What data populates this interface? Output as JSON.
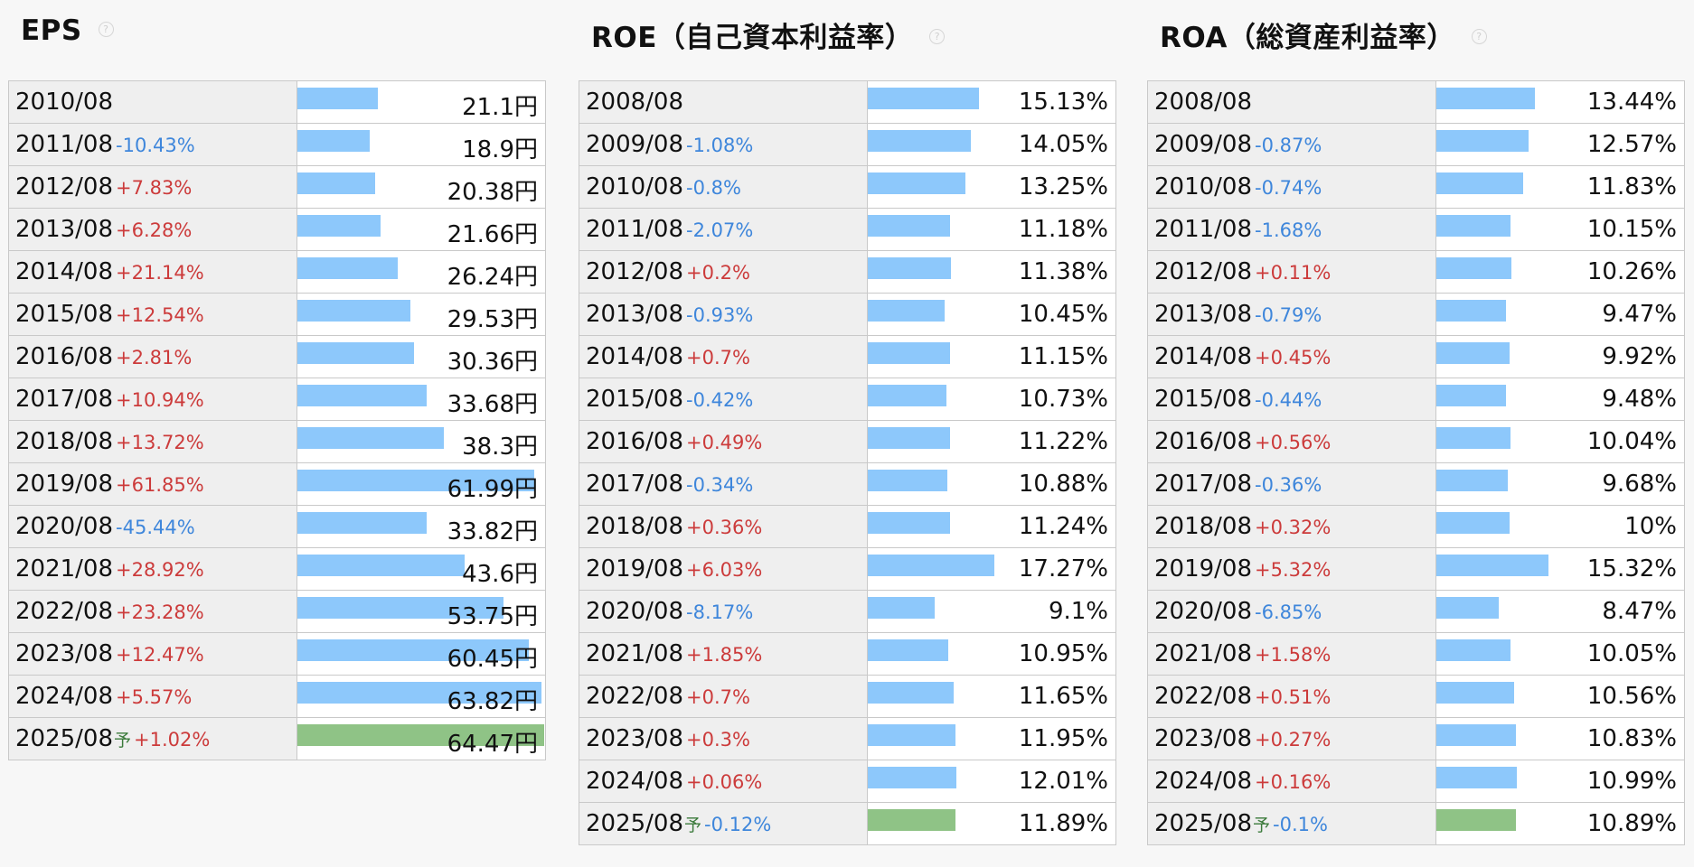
{
  "sections": [
    {
      "title": "EPS",
      "unit": "円",
      "rows": [
        {
          "year": "2010/08",
          "change": "",
          "value": 21.1,
          "value_text": "21.1円",
          "forecast": false
        },
        {
          "year": "2011/08",
          "change": "-10.43%",
          "value": 18.9,
          "value_text": "18.9円",
          "forecast": false
        },
        {
          "year": "2012/08",
          "change": "+7.83%",
          "value": 20.38,
          "value_text": "20.38円",
          "forecast": false
        },
        {
          "year": "2013/08",
          "change": "+6.28%",
          "value": 21.66,
          "value_text": "21.66円",
          "forecast": false
        },
        {
          "year": "2014/08",
          "change": "+21.14%",
          "value": 26.24,
          "value_text": "26.24円",
          "forecast": false
        },
        {
          "year": "2015/08",
          "change": "+12.54%",
          "value": 29.53,
          "value_text": "29.53円",
          "forecast": false
        },
        {
          "year": "2016/08",
          "change": "+2.81%",
          "value": 30.36,
          "value_text": "30.36円",
          "forecast": false
        },
        {
          "year": "2017/08",
          "change": "+10.94%",
          "value": 33.68,
          "value_text": "33.68円",
          "forecast": false
        },
        {
          "year": "2018/08",
          "change": "+13.72%",
          "value": 38.3,
          "value_text": "38.3円",
          "forecast": false
        },
        {
          "year": "2019/08",
          "change": "+61.85%",
          "value": 61.99,
          "value_text": "61.99円",
          "forecast": false
        },
        {
          "year": "2020/08",
          "change": "-45.44%",
          "value": 33.82,
          "value_text": "33.82円",
          "forecast": false
        },
        {
          "year": "2021/08",
          "change": "+28.92%",
          "value": 43.6,
          "value_text": "43.6円",
          "forecast": false
        },
        {
          "year": "2022/08",
          "change": "+23.28%",
          "value": 53.75,
          "value_text": "53.75円",
          "forecast": false
        },
        {
          "year": "2023/08",
          "change": "+12.47%",
          "value": 60.45,
          "value_text": "60.45円",
          "forecast": false
        },
        {
          "year": "2024/08",
          "change": "+5.57%",
          "value": 63.82,
          "value_text": "63.82円",
          "forecast": false
        },
        {
          "year": "2025/08",
          "forecast_mark": "予",
          "change": "+1.02%",
          "value": 64.47,
          "value_text": "64.47円",
          "forecast": true
        }
      ]
    },
    {
      "title": "ROE（自己資本利益率）",
      "unit": "%",
      "rows": [
        {
          "year": "2008/08",
          "change": "",
          "value": 15.13,
          "value_text": "15.13%",
          "forecast": false
        },
        {
          "year": "2009/08",
          "change": "-1.08%",
          "value": 14.05,
          "value_text": "14.05%",
          "forecast": false
        },
        {
          "year": "2010/08",
          "change": "-0.8%",
          "value": 13.25,
          "value_text": "13.25%",
          "forecast": false
        },
        {
          "year": "2011/08",
          "change": "-2.07%",
          "value": 11.18,
          "value_text": "11.18%",
          "forecast": false
        },
        {
          "year": "2012/08",
          "change": "+0.2%",
          "value": 11.38,
          "value_text": "11.38%",
          "forecast": false
        },
        {
          "year": "2013/08",
          "change": "-0.93%",
          "value": 10.45,
          "value_text": "10.45%",
          "forecast": false
        },
        {
          "year": "2014/08",
          "change": "+0.7%",
          "value": 11.15,
          "value_text": "11.15%",
          "forecast": false
        },
        {
          "year": "2015/08",
          "change": "-0.42%",
          "value": 10.73,
          "value_text": "10.73%",
          "forecast": false
        },
        {
          "year": "2016/08",
          "change": "+0.49%",
          "value": 11.22,
          "value_text": "11.22%",
          "forecast": false
        },
        {
          "year": "2017/08",
          "change": "-0.34%",
          "value": 10.88,
          "value_text": "10.88%",
          "forecast": false
        },
        {
          "year": "2018/08",
          "change": "+0.36%",
          "value": 11.24,
          "value_text": "11.24%",
          "forecast": false
        },
        {
          "year": "2019/08",
          "change": "+6.03%",
          "value": 17.27,
          "value_text": "17.27%",
          "forecast": false
        },
        {
          "year": "2020/08",
          "change": "-8.17%",
          "value": 9.1,
          "value_text": "9.1%",
          "forecast": false
        },
        {
          "year": "2021/08",
          "change": "+1.85%",
          "value": 10.95,
          "value_text": "10.95%",
          "forecast": false
        },
        {
          "year": "2022/08",
          "change": "+0.7%",
          "value": 11.65,
          "value_text": "11.65%",
          "forecast": false
        },
        {
          "year": "2023/08",
          "change": "+0.3%",
          "value": 11.95,
          "value_text": "11.95%",
          "forecast": false
        },
        {
          "year": "2024/08",
          "change": "+0.06%",
          "value": 12.01,
          "value_text": "12.01%",
          "forecast": false
        },
        {
          "year": "2025/08",
          "forecast_mark": "予",
          "change": "-0.12%",
          "value": 11.89,
          "value_text": "11.89%",
          "forecast": true
        }
      ]
    },
    {
      "title": "ROA（総資産利益率）",
      "unit": "%",
      "rows": [
        {
          "year": "2008/08",
          "change": "",
          "value": 13.44,
          "value_text": "13.44%",
          "forecast": false
        },
        {
          "year": "2009/08",
          "change": "-0.87%",
          "value": 12.57,
          "value_text": "12.57%",
          "forecast": false
        },
        {
          "year": "2010/08",
          "change": "-0.74%",
          "value": 11.83,
          "value_text": "11.83%",
          "forecast": false
        },
        {
          "year": "2011/08",
          "change": "-1.68%",
          "value": 10.15,
          "value_text": "10.15%",
          "forecast": false
        },
        {
          "year": "2012/08",
          "change": "+0.11%",
          "value": 10.26,
          "value_text": "10.26%",
          "forecast": false
        },
        {
          "year": "2013/08",
          "change": "-0.79%",
          "value": 9.47,
          "value_text": "9.47%",
          "forecast": false
        },
        {
          "year": "2014/08",
          "change": "+0.45%",
          "value": 9.92,
          "value_text": "9.92%",
          "forecast": false
        },
        {
          "year": "2015/08",
          "change": "-0.44%",
          "value": 9.48,
          "value_text": "9.48%",
          "forecast": false
        },
        {
          "year": "2016/08",
          "change": "+0.56%",
          "value": 10.04,
          "value_text": "10.04%",
          "forecast": false
        },
        {
          "year": "2017/08",
          "change": "-0.36%",
          "value": 9.68,
          "value_text": "9.68%",
          "forecast": false
        },
        {
          "year": "2018/08",
          "change": "+0.32%",
          "value": 10,
          "value_text": "10%",
          "forecast": false
        },
        {
          "year": "2019/08",
          "change": "+5.32%",
          "value": 15.32,
          "value_text": "15.32%",
          "forecast": false
        },
        {
          "year": "2020/08",
          "change": "-6.85%",
          "value": 8.47,
          "value_text": "8.47%",
          "forecast": false
        },
        {
          "year": "2021/08",
          "change": "+1.58%",
          "value": 10.05,
          "value_text": "10.05%",
          "forecast": false
        },
        {
          "year": "2022/08",
          "change": "+0.51%",
          "value": 10.56,
          "value_text": "10.56%",
          "forecast": false
        },
        {
          "year": "2023/08",
          "change": "+0.27%",
          "value": 10.83,
          "value_text": "10.83%",
          "forecast": false
        },
        {
          "year": "2024/08",
          "change": "+0.16%",
          "value": 10.99,
          "value_text": "10.99%",
          "forecast": false
        },
        {
          "year": "2025/08",
          "forecast_mark": "予",
          "change": "-0.1%",
          "value": 10.89,
          "value_text": "10.89%",
          "forecast": true
        }
      ]
    }
  ],
  "help_icon": "question-circle-icon",
  "colors": {
    "bar_actual": "#8dc8fb",
    "bar_forecast": "#8fc386",
    "change_positive": "#cc3b3b",
    "change_negative": "#3e86db",
    "forecast_mark": "#3a7a3a",
    "label_bg": "#efefef",
    "border": "#c9c9c9"
  }
}
